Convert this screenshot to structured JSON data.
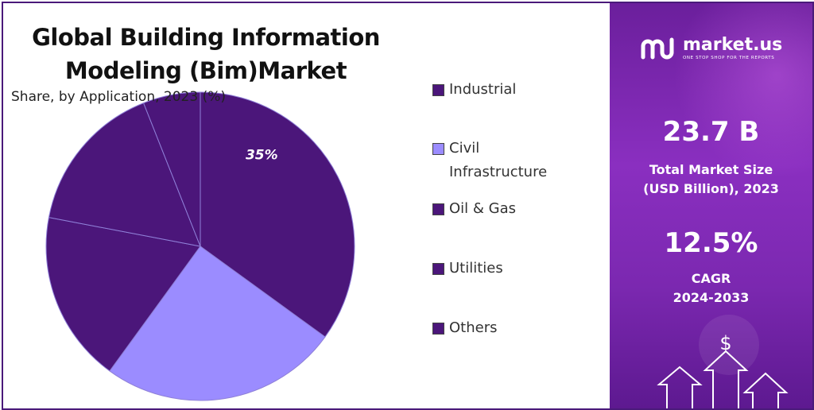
{
  "chart_data": {
    "type": "pie",
    "title": "Global Building Information Modeling (Bim)Market",
    "title_lines": [
      "Global Building Information",
      "Modeling (Bim)Market"
    ],
    "subtitle": "Share, by Application, 2023 (%)",
    "legend_position": "right",
    "slices": [
      {
        "label": "Industrial",
        "value": 35,
        "color": "#4b167a",
        "data_label": "35%"
      },
      {
        "label": "Civil Infrastructure",
        "value": 25,
        "color": "#9b8cff",
        "data_label": ""
      },
      {
        "label": "Oil & Gas",
        "value": 18,
        "color": "#4b167a",
        "data_label": ""
      },
      {
        "label": "Utilities",
        "value": 16,
        "color": "#4b167a",
        "data_label": ""
      },
      {
        "label": "Others",
        "value": 6,
        "color": "#4b167a",
        "data_label": ""
      }
    ],
    "legend": [
      {
        "label": "Civil\nInfrastructure",
        "color": "#9b8cff"
      }
    ]
  },
  "legend_items": [
    {
      "label": "Industrial",
      "color": "#4b167a"
    },
    {
      "label": "Civil Infrastructure",
      "color": "#9b8cff"
    },
    {
      "label": "Oil & Gas",
      "color": "#4b167a"
    },
    {
      "label": "Utilities",
      "color": "#4b167a"
    },
    {
      "label": "Others",
      "color": "#4b167a"
    }
  ],
  "brand": {
    "name": "market.us",
    "tagline": "ONE STOP SHOP FOR THE REPORTS"
  },
  "stats": {
    "market_size_value": "23.7 B",
    "market_size_label_1": "Total Market Size",
    "market_size_label_2": "(USD Billion), 2023",
    "cagr_value": "12.5%",
    "cagr_label_1": "CAGR",
    "cagr_label_2": "2024-2033"
  },
  "decor": {
    "dollar_symbol": "$"
  },
  "colors": {
    "dark_purple": "#4b167a",
    "light_purple": "#9b8cff",
    "panel_purple": "#7b28b0"
  }
}
